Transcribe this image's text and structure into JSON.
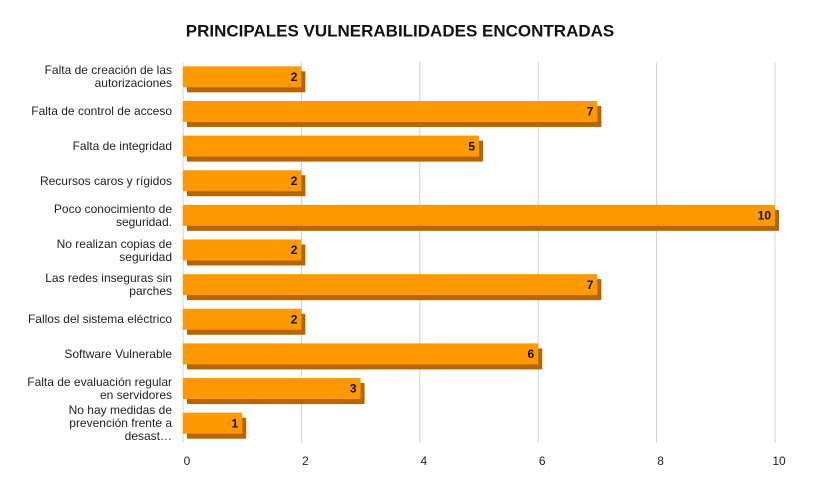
{
  "chart_data": {
    "type": "bar",
    "orientation": "horizontal",
    "title": "PRINCIPALES VULNERABILIDADES ENCONTRADAS",
    "categories": [
      "Falta de creación de las autorizaciones",
      "Falta de control de acceso",
      "Falta de integridad",
      "Recursos caros y rígidos",
      "Poco conocimiento de seguridad.",
      "No realizan copias de seguridad",
      "Las redes inseguras sin parches",
      "Fallos del sistema eléctrico",
      "Software Vulnerable",
      "Falta de evaluación regular en servidores",
      "No hay medidas de prevención frente a desast…"
    ],
    "values": [
      2,
      7,
      5,
      2,
      10,
      2,
      7,
      2,
      6,
      3,
      1
    ],
    "color": "#ff9900",
    "xlim": [
      0,
      10
    ],
    "xticks": [
      0,
      2,
      4,
      6,
      8,
      10
    ],
    "grid": true
  }
}
